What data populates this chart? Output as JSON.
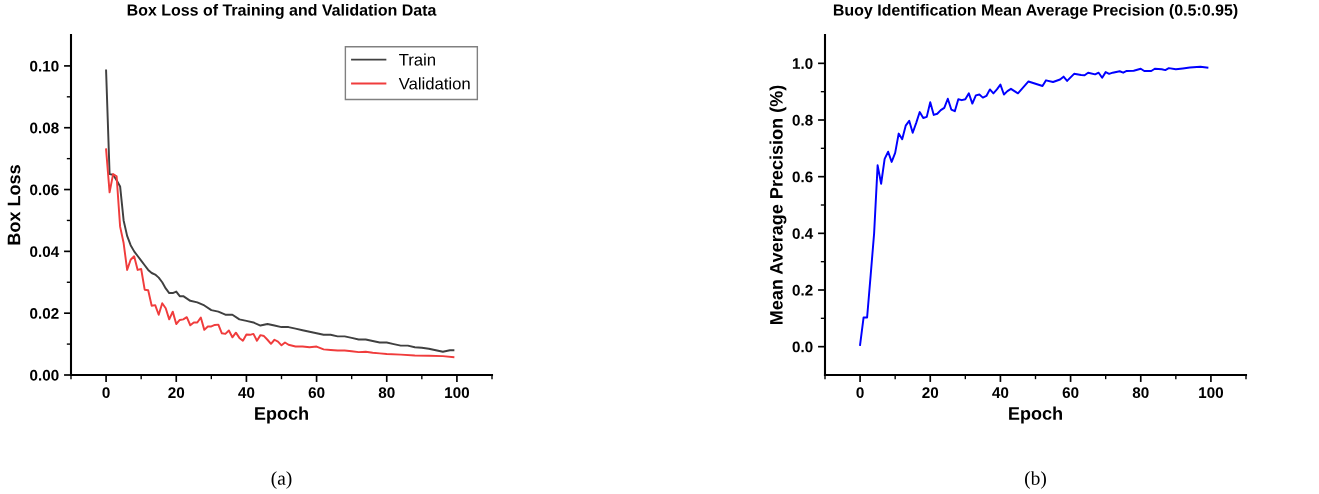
{
  "chart_data": [
    {
      "type": "line",
      "title": "Box Loss of Training and Validation Data",
      "xlabel": "Epoch",
      "ylabel": "Box Loss",
      "xlim": [
        -10,
        110
      ],
      "ylim": [
        0,
        0.11
      ],
      "xticks": [
        {
          "value": -10,
          "label": null
        },
        0,
        {
          "value": 10,
          "label": null
        },
        20,
        {
          "value": 30,
          "label": null
        },
        40,
        {
          "value": 50,
          "label": null
        },
        60,
        {
          "value": 70,
          "label": null
        },
        80,
        {
          "value": 90,
          "label": null
        },
        100,
        {
          "value": 110,
          "label": null
        }
      ],
      "yticks": [
        {
          "value": 0,
          "label": "0.00"
        },
        {
          "value": 0.01,
          "label": null
        },
        {
          "value": 0.02,
          "label": "0.02"
        },
        {
          "value": 0.03,
          "label": null
        },
        {
          "value": 0.04,
          "label": "0.04"
        },
        {
          "value": 0.05,
          "label": null
        },
        {
          "value": 0.06,
          "label": "0.06"
        },
        {
          "value": 0.07,
          "label": null
        },
        {
          "value": 0.08,
          "label": "0.08"
        },
        {
          "value": 0.09,
          "label": null
        },
        {
          "value": 0.1,
          "label": "0.10"
        }
      ],
      "legend": "top right",
      "grid": false,
      "marker": "none",
      "line_style": "solid",
      "annotations": [
        "(a)"
      ],
      "series": [
        {
          "name": "Train",
          "color": "#404040",
          "x": [
            0,
            1,
            2,
            3,
            4,
            5,
            6,
            7,
            8,
            9,
            10,
            11,
            12,
            13,
            14,
            15,
            16,
            17,
            18,
            19,
            20,
            21,
            22,
            24,
            26,
            28,
            30,
            32,
            34,
            36,
            38,
            40,
            42,
            44,
            46,
            48,
            50,
            52,
            54,
            56,
            58,
            60,
            62,
            64,
            66,
            68,
            70,
            72,
            74,
            76,
            78,
            80,
            82,
            84,
            86,
            88,
            90,
            92,
            94,
            96,
            98,
            99
          ],
          "values": [
            0.0985,
            0.065,
            0.0648,
            0.063,
            0.061,
            0.05,
            0.045,
            0.042,
            0.04,
            0.0385,
            0.037,
            0.0355,
            0.034,
            0.033,
            0.0325,
            0.0315,
            0.03,
            0.028,
            0.0265,
            0.0265,
            0.027,
            0.0255,
            0.0255,
            0.024,
            0.0235,
            0.0225,
            0.021,
            0.0205,
            0.0195,
            0.0195,
            0.018,
            0.0175,
            0.017,
            0.016,
            0.0165,
            0.016,
            0.0155,
            0.0155,
            0.015,
            0.0145,
            0.014,
            0.0135,
            0.013,
            0.013,
            0.0125,
            0.0125,
            0.012,
            0.0115,
            0.0115,
            0.011,
            0.0105,
            0.0105,
            0.01,
            0.0095,
            0.0095,
            0.009,
            0.0088,
            0.0085,
            0.008,
            0.0075,
            0.008,
            0.008
          ]
        },
        {
          "name": "Validation",
          "color": "#f03c3c",
          "x": [
            0,
            1,
            2,
            3,
            4,
            5,
            6,
            7,
            8,
            9,
            10,
            11,
            12,
            13,
            14,
            15,
            16,
            17,
            18,
            19,
            20,
            21,
            22,
            23,
            24,
            25,
            26,
            27,
            28,
            29,
            30,
            31,
            32,
            33,
            34,
            35,
            36,
            37,
            38,
            39,
            40,
            41,
            42,
            43,
            44,
            45,
            46,
            47,
            48,
            49,
            50,
            51,
            52,
            54,
            56,
            58,
            60,
            62,
            64,
            66,
            68,
            70,
            72,
            74,
            76,
            78,
            80,
            84,
            88,
            92,
            96,
            99
          ],
          "values": [
            0.073,
            0.0591,
            0.065,
            0.0643,
            0.048,
            0.0427,
            0.034,
            0.0373,
            0.0384,
            0.034,
            0.0343,
            0.0276,
            0.0274,
            0.0224,
            0.0226,
            0.0195,
            0.0232,
            0.0216,
            0.018,
            0.0205,
            0.0165,
            0.0178,
            0.018,
            0.0187,
            0.0161,
            0.017,
            0.017,
            0.0186,
            0.0146,
            0.0157,
            0.0157,
            0.0162,
            0.0163,
            0.0135,
            0.0133,
            0.0144,
            0.0122,
            0.0137,
            0.012,
            0.0111,
            0.0131,
            0.013,
            0.0133,
            0.0111,
            0.0129,
            0.0126,
            0.0114,
            0.0101,
            0.0114,
            0.0108,
            0.0096,
            0.0105,
            0.0098,
            0.0092,
            0.0092,
            0.009,
            0.0092,
            0.0083,
            0.0081,
            0.0079,
            0.0079,
            0.0077,
            0.0074,
            0.0075,
            0.0072,
            0.007,
            0.0068,
            0.0066,
            0.0063,
            0.0062,
            0.0061,
            0.0058
          ]
        }
      ]
    },
    {
      "type": "line",
      "title": "Buoy Identification Mean Average Precision (0.5:0.95)",
      "xlabel": "Epoch",
      "ylabel": "Mean Average Precision (%)",
      "xlim": [
        -10,
        110
      ],
      "ylim": [
        -0.1,
        1.1
      ],
      "xticks": [
        {
          "value": -10,
          "label": null
        },
        0,
        {
          "value": 10,
          "label": null
        },
        20,
        {
          "value": 30,
          "label": null
        },
        40,
        {
          "value": 50,
          "label": null
        },
        60,
        {
          "value": 70,
          "label": null
        },
        80,
        {
          "value": 90,
          "label": null
        },
        100,
        {
          "value": 110,
          "label": null
        }
      ],
      "yticks": [
        {
          "value": 0,
          "label": "0.0"
        },
        {
          "value": 0.1,
          "label": null
        },
        {
          "value": 0.2,
          "label": "0.2"
        },
        {
          "value": 0.3,
          "label": null
        },
        {
          "value": 0.4,
          "label": "0.4"
        },
        {
          "value": 0.5,
          "label": null
        },
        {
          "value": 0.6,
          "label": "0.6"
        },
        {
          "value": 0.7,
          "label": null
        },
        {
          "value": 0.8,
          "label": "0.8"
        },
        {
          "value": 0.9,
          "label": null
        },
        {
          "value": 1.0,
          "label": "1.0"
        }
      ],
      "grid": false,
      "marker": "none",
      "line_style": "solid",
      "annotations": [
        "(b)"
      ],
      "series": [
        {
          "color": "#0000ff",
          "x": [
            0,
            1,
            2,
            3,
            4,
            5,
            6,
            7,
            8,
            9,
            10,
            11,
            12,
            13,
            14,
            15,
            16,
            17,
            18,
            19,
            20,
            21,
            22,
            23,
            24,
            25,
            26,
            27,
            28,
            29,
            30,
            31,
            32,
            33,
            34,
            35,
            36,
            37,
            38,
            39,
            40,
            41,
            42,
            43,
            44,
            45,
            46,
            48,
            50,
            52,
            53,
            55,
            57,
            58,
            59,
            61,
            63,
            64,
            65,
            67,
            68,
            69,
            70,
            71,
            72,
            74,
            75,
            76,
            78,
            80,
            81,
            83,
            84,
            86,
            87,
            88,
            90,
            92,
            94,
            97,
            99
          ],
          "values": [
            0.006,
            0.103,
            0.103,
            0.25,
            0.4,
            0.64,
            0.575,
            0.663,
            0.688,
            0.652,
            0.684,
            0.752,
            0.732,
            0.78,
            0.797,
            0.755,
            0.79,
            0.828,
            0.807,
            0.811,
            0.863,
            0.818,
            0.822,
            0.835,
            0.843,
            0.875,
            0.837,
            0.831,
            0.873,
            0.87,
            0.873,
            0.894,
            0.858,
            0.887,
            0.89,
            0.879,
            0.885,
            0.908,
            0.894,
            0.908,
            0.925,
            0.89,
            0.902,
            0.91,
            0.902,
            0.894,
            0.908,
            0.936,
            0.928,
            0.92,
            0.94,
            0.934,
            0.943,
            0.953,
            0.938,
            0.963,
            0.959,
            0.958,
            0.967,
            0.961,
            0.967,
            0.949,
            0.969,
            0.963,
            0.967,
            0.972,
            0.967,
            0.973,
            0.974,
            0.981,
            0.973,
            0.973,
            0.981,
            0.979,
            0.976,
            0.983,
            0.979,
            0.982,
            0.985,
            0.988,
            0.985
          ]
        }
      ]
    }
  ]
}
